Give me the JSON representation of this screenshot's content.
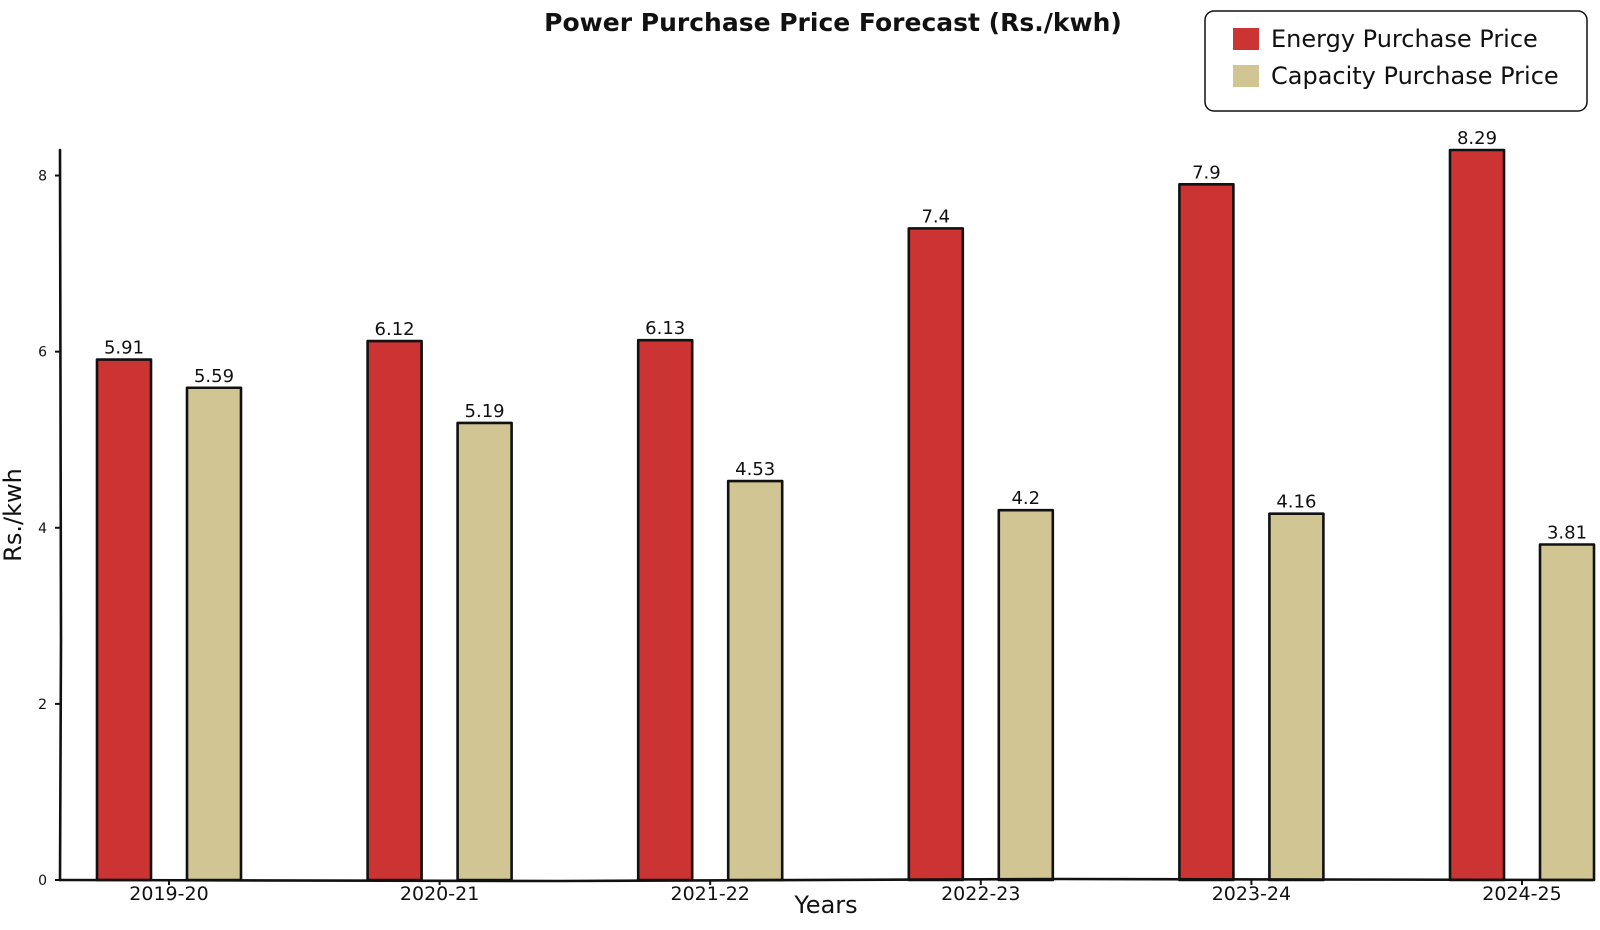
{
  "chart_data": {
    "type": "bar",
    "title": "Power Purchase Price Forecast (Rs./kwh)",
    "xlabel": "Years",
    "ylabel": "Rs./kwh",
    "categories": [
      "2019-20",
      "2020-21",
      "2021-22",
      "2022-23",
      "2023-24",
      "2024-25"
    ],
    "series": [
      {
        "name": "Energy Purchase Price",
        "color": "#cc3333",
        "values": [
          5.91,
          6.12,
          6.13,
          7.4,
          7.9,
          8.29
        ],
        "labels": [
          "5.91",
          "6.12",
          "6.13",
          "7.4",
          "7.9",
          "8.29"
        ]
      },
      {
        "name": "Capacity Purchase Price",
        "color": "#d1c593",
        "values": [
          5.59,
          5.19,
          4.53,
          4.2,
          4.16,
          3.81
        ],
        "labels": [
          "5.59",
          "5.19",
          "4.53",
          "4.2",
          "4.16",
          "3.81"
        ]
      }
    ],
    "yticks": [
      0,
      2,
      4,
      6,
      8
    ],
    "ylim": [
      0,
      8.29
    ],
    "grid": false,
    "legend_position": "top-right"
  }
}
